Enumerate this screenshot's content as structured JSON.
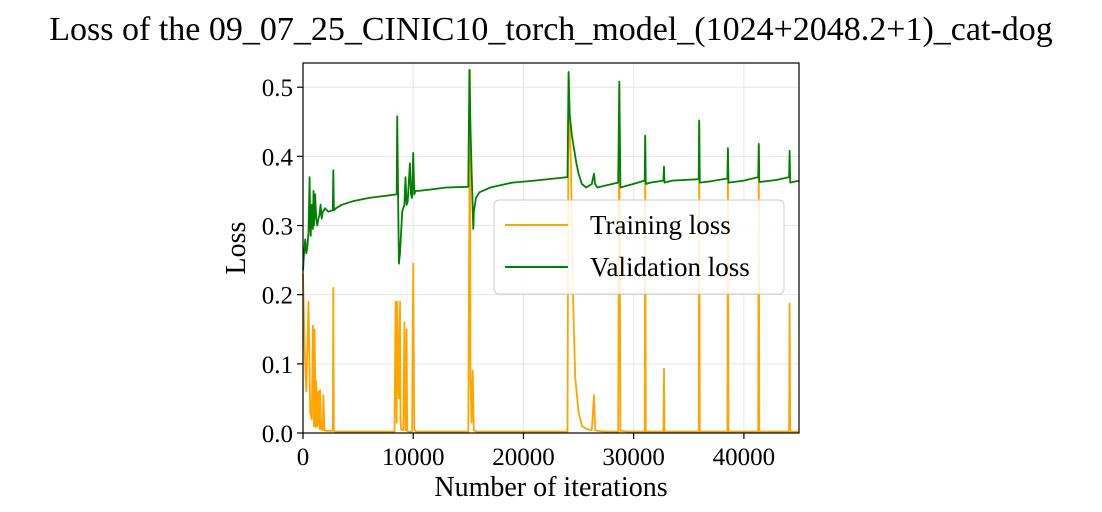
{
  "chart_data": {
    "type": "line",
    "title": "Loss of the 09_07_25_CINIC10_torch_model_(1024+2048.2+1)_cat-dog",
    "xlabel": "Number of iterations",
    "ylabel": "Loss",
    "xlim": [
      0,
      45000
    ],
    "ylim": [
      0,
      0.535
    ],
    "xticks": [
      0,
      10000,
      20000,
      30000,
      40000
    ],
    "xtick_labels": [
      "0",
      "10000",
      "20000",
      "30000",
      "40000"
    ],
    "yticks": [
      0.0,
      0.1,
      0.2,
      0.3,
      0.4,
      0.5
    ],
    "ytick_labels": [
      "0.0",
      "0.1",
      "0.2",
      "0.3",
      "0.4",
      "0.5"
    ],
    "grid": true,
    "legend_position": "center-right",
    "series": [
      {
        "name": "Training loss",
        "color": "#ffa500",
        "x": [
          0,
          150,
          300,
          500,
          650,
          800,
          900,
          1000,
          1050,
          1150,
          1200,
          1300,
          1400,
          1500,
          1550,
          1650,
          1800,
          1850,
          1950,
          2100,
          2700,
          2750,
          2800,
          2900,
          3500,
          5000,
          7000,
          8300,
          8400,
          8500,
          8550,
          8700,
          8800,
          8850,
          8900,
          9100,
          9200,
          9300,
          9400,
          9450,
          9600,
          9800,
          9900,
          10000,
          10100,
          10200,
          10300,
          10500,
          12000,
          14000,
          15000,
          15150,
          15200,
          15300,
          15400,
          15500,
          15600,
          15800,
          18000,
          21000,
          24000,
          24100,
          24200,
          24300,
          24400,
          24500,
          24700,
          25000,
          25300,
          25700,
          26200,
          26400,
          26500,
          26700,
          27500,
          28600,
          28700,
          28800,
          29500,
          31000,
          31050,
          31100,
          31500,
          32700,
          32750,
          32800,
          33500,
          35900,
          35950,
          36000,
          37000,
          38500,
          38550,
          38600,
          40000,
          41300,
          41350,
          41400,
          43000,
          44100,
          44150,
          44200,
          45000
        ],
        "y": [
          0.23,
          0.12,
          0.06,
          0.19,
          0.03,
          0.02,
          0.155,
          0.01,
          0.15,
          0.008,
          0.075,
          0.01,
          0.06,
          0.006,
          0.062,
          0.005,
          0.004,
          0.055,
          0.004,
          0.003,
          0.003,
          0.21,
          0.004,
          0.002,
          0.002,
          0.002,
          0.002,
          0.002,
          0.19,
          0.015,
          0.19,
          0.05,
          0.19,
          0.02,
          0.005,
          0.004,
          0.16,
          0.004,
          0.15,
          0.003,
          0.002,
          0.002,
          0.003,
          0.245,
          0.006,
          0.003,
          0.002,
          0.002,
          0.002,
          0.002,
          0.002,
          0.525,
          0.08,
          0.015,
          0.09,
          0.004,
          0.003,
          0.002,
          0.002,
          0.002,
          0.002,
          0.52,
          0.44,
          0.4,
          0.3,
          0.2,
          0.08,
          0.03,
          0.01,
          0.006,
          0.004,
          0.055,
          0.004,
          0.003,
          0.002,
          0.002,
          0.5,
          0.003,
          0.002,
          0.002,
          0.43,
          0.002,
          0.002,
          0.002,
          0.093,
          0.002,
          0.002,
          0.002,
          0.45,
          0.002,
          0.002,
          0.002,
          0.41,
          0.002,
          0.002,
          0.002,
          0.415,
          0.002,
          0.002,
          0.002,
          0.187,
          0.002,
          0.002
        ]
      },
      {
        "name": "Validation loss",
        "color": "#008000",
        "x": [
          0,
          100,
          200,
          300,
          400,
          500,
          600,
          650,
          700,
          800,
          900,
          950,
          1000,
          1100,
          1200,
          1300,
          1400,
          1500,
          1600,
          1700,
          1800,
          1900,
          2000,
          2300,
          2700,
          2750,
          2800,
          3000,
          3500,
          4500,
          6000,
          7500,
          8500,
          8550,
          8600,
          8700,
          8800,
          9000,
          9200,
          9300,
          9400,
          9500,
          9700,
          9800,
          9900,
          10000,
          10100,
          10200,
          10500,
          11500,
          13000,
          15000,
          15100,
          15200,
          15300,
          15450,
          15500,
          15700,
          16000,
          17000,
          19000,
          21000,
          24000,
          24100,
          24200,
          24400,
          24600,
          24800,
          25000,
          25300,
          25700,
          26200,
          26400,
          26500,
          26700,
          27500,
          28600,
          28700,
          28800,
          29500,
          31000,
          31050,
          31100,
          31500,
          32700,
          32750,
          32800,
          33500,
          35900,
          35950,
          36000,
          37000,
          38500,
          38550,
          38600,
          40000,
          41300,
          41350,
          41400,
          43000,
          44100,
          44150,
          44200,
          45000
        ],
        "y": [
          0.235,
          0.26,
          0.28,
          0.26,
          0.27,
          0.29,
          0.37,
          0.3,
          0.285,
          0.33,
          0.295,
          0.35,
          0.3,
          0.345,
          0.31,
          0.3,
          0.31,
          0.315,
          0.33,
          0.31,
          0.32,
          0.322,
          0.325,
          0.32,
          0.322,
          0.38,
          0.322,
          0.325,
          0.33,
          0.335,
          0.34,
          0.343,
          0.345,
          0.458,
          0.38,
          0.245,
          0.26,
          0.32,
          0.33,
          0.37,
          0.33,
          0.335,
          0.39,
          0.345,
          0.34,
          0.405,
          0.345,
          0.35,
          0.35,
          0.352,
          0.355,
          0.356,
          0.525,
          0.44,
          0.38,
          0.295,
          0.32,
          0.34,
          0.348,
          0.355,
          0.362,
          0.365,
          0.37,
          0.522,
          0.46,
          0.43,
          0.41,
          0.39,
          0.375,
          0.36,
          0.355,
          0.36,
          0.375,
          0.36,
          0.355,
          0.358,
          0.362,
          0.508,
          0.355,
          0.358,
          0.365,
          0.43,
          0.36,
          0.362,
          0.365,
          0.385,
          0.362,
          0.365,
          0.367,
          0.452,
          0.362,
          0.364,
          0.368,
          0.412,
          0.362,
          0.365,
          0.37,
          0.418,
          0.363,
          0.366,
          0.37,
          0.408,
          0.362,
          0.365
        ]
      }
    ]
  }
}
